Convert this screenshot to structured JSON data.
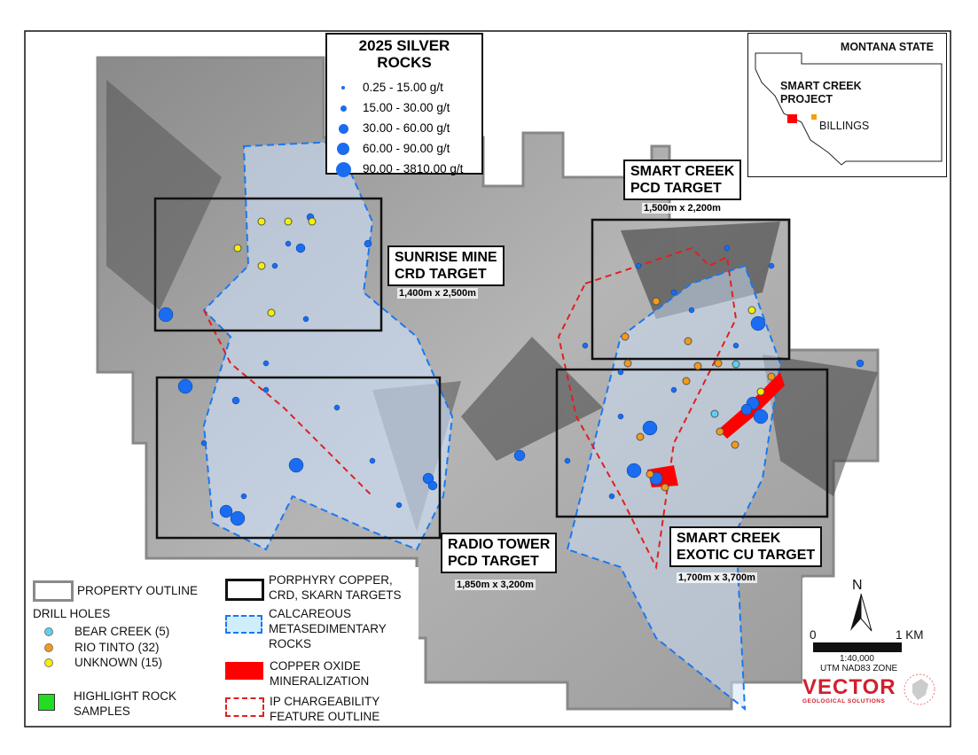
{
  "silver_legend": {
    "title": "2025 SILVER ROCKS",
    "classes": [
      {
        "label": "0.25 - 15.00 g/t",
        "color": "#1a6cf0"
      },
      {
        "label": "15.00 - 30.00 g/t",
        "color": "#1a6cf0"
      },
      {
        "label": "30.00 - 60.00 g/t",
        "color": "#1a6cf0"
      },
      {
        "label": "60.00 - 90.00 g/t",
        "color": "#1a6cf0"
      },
      {
        "label": "90.00 - 3810.00 g/t",
        "color": "#1a6cf0"
      }
    ]
  },
  "inset": {
    "title": "MONTANA STATE",
    "project": "SMART CREEK PROJECT",
    "city": "BILLINGS",
    "project_color": "#ff0000",
    "city_color": "#f5a000"
  },
  "targets": [
    {
      "name": "SUNRISE MINE CRD TARGET",
      "line1": "SUNRISE MINE",
      "line2": "CRD TARGET",
      "size": "1,400m x 2,500m"
    },
    {
      "name": "SMART CREEK PCD TARGET",
      "line1": "SMART CREEK",
      "line2": "PCD TARGET",
      "size": "1,500m x 2,200m"
    },
    {
      "name": "RADIO TOWER PCD TARGET",
      "line1": "RADIO TOWER",
      "line2": "PCD TARGET",
      "size": "1,850m x 3,200m"
    },
    {
      "name": "SMART CREEK EXOTIC CU TARGET",
      "line1": "SMART CREEK",
      "line2": "EXOTIC CU TARGET",
      "size": "1,700m x 3,700m"
    }
  ],
  "legend": {
    "property_outline": "PROPERTY OUTLINE",
    "drill_holes": "DRILL HOLES",
    "bear_creek": "BEAR CREEK (5)",
    "rio_tinto": "RIO TINTO (32)",
    "unknown": "UNKNOWN (15)",
    "highlight": "HIGHLIGHT ROCK SAMPLES",
    "highlight_1": "HIGHLIGHT ROCK",
    "highlight_2": "SAMPLES",
    "targets_1": "PORPHYRY COPPER,",
    "targets_2": "CRD, SKARN TARGETS",
    "calc_1": "CALCAREOUS",
    "calc_2": "METASEDIMENTARY",
    "calc_3": "ROCKS",
    "cu_1": "COPPER OXIDE",
    "cu_2": "MINERALIZATION",
    "ip_1": "IP CHARGEABILITY",
    "ip_2": "FEATURE OUTLINE",
    "colors": {
      "bear_creek": "#5fd0f0",
      "rio_tinto": "#f39a1a",
      "unknown": "#f5f000",
      "highlight": "#22dd22",
      "copper_oxide": "#ff0000",
      "ip": "#e02020",
      "calcareous": "#1a78f0"
    }
  },
  "scale": {
    "north": "N",
    "zero": "0",
    "one": "1 KM",
    "ratio": "1:40,000",
    "projection": "UTM NAD83 ZONE"
  },
  "logo": {
    "name": "VECTOR",
    "tagline": "GEOLOGICAL SOLUTIONS"
  }
}
